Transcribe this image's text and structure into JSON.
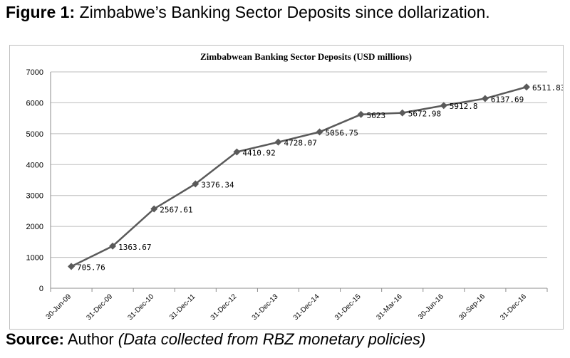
{
  "figure_caption": {
    "label": "Figure 1:",
    "text": "Zimbabwe’s Banking Sector Deposits since dollarization."
  },
  "source_note": {
    "label": "Source:",
    "text": "Author",
    "detail": "(Data collected from RBZ monetary policies)"
  },
  "chart_data": {
    "type": "line",
    "title": "Zimbabwean Banking Sector Deposits (USD millions)",
    "xlabel": "",
    "ylabel": "",
    "ylim": [
      0,
      7000
    ],
    "yticks": [
      0,
      1000,
      2000,
      3000,
      4000,
      5000,
      6000,
      7000
    ],
    "grid": true,
    "legend": "none",
    "categories": [
      "30-Jun-09",
      "31-Dec-09",
      "31-Dec-10",
      "31-Dec-11",
      "31-Dec-12",
      "31-Dec-13",
      "31-Dec-14",
      "31-Dec-15",
      "31-Mar-16",
      "30-Jun-16",
      "30-Sep-16",
      "31-Dec-16"
    ],
    "series": [
      {
        "values": [
          705.76,
          1363.67,
          2567.61,
          3376.34,
          4410.92,
          4728.07,
          5056.75,
          5623,
          5672.98,
          5912.8,
          6137.69,
          6511.83
        ],
        "labels": [
          "705.76",
          "1363.67",
          "2567.61",
          "3376.34",
          "4410.92",
          "4728.07",
          "5056.75",
          "5623",
          "5672.98",
          "5912.8",
          "6137.69",
          "6511.83"
        ],
        "color": "#5a5a5a"
      }
    ]
  }
}
